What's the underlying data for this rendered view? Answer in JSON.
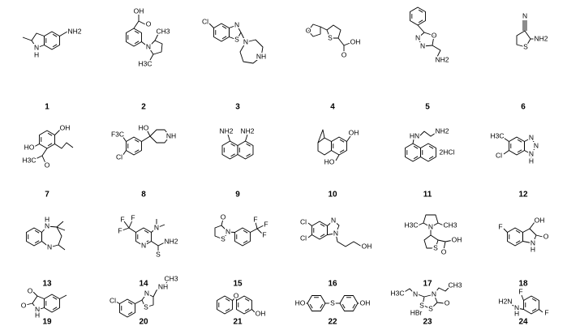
{
  "compounds": [
    {
      "number": 1,
      "labels": [
        "NH2",
        "N",
        "H"
      ]
    },
    {
      "number": 2,
      "labels": [
        "OH",
        "O",
        "N",
        "CH3",
        "H3C"
      ]
    },
    {
      "number": 3,
      "labels": [
        "Cl",
        "N",
        "S",
        "N",
        "NH"
      ]
    },
    {
      "number": 4,
      "labels": [
        "O",
        "S",
        "OH",
        "O"
      ]
    },
    {
      "number": 5,
      "labels": [
        "N",
        "O",
        "N",
        "NH2"
      ]
    },
    {
      "number": 6,
      "labels": [
        "N",
        "S",
        "NH2"
      ]
    },
    {
      "number": 7,
      "labels": [
        "OH",
        "HO",
        "H3C",
        "O"
      ]
    },
    {
      "number": 8,
      "labels": [
        "F3C",
        "HO",
        "NH",
        "Cl"
      ]
    },
    {
      "number": 9,
      "labels": [
        "NH2",
        "NH2"
      ]
    },
    {
      "number": 10,
      "labels": [
        "OH",
        "HO"
      ]
    },
    {
      "number": 11,
      "labels": [
        "HN",
        "NH2",
        "2HCl"
      ]
    },
    {
      "number": 12,
      "labels": [
        "H3C",
        "Cl",
        "N",
        "N",
        "N",
        "H"
      ]
    },
    {
      "number": 13,
      "labels": [
        "H",
        "N",
        "N"
      ]
    },
    {
      "number": 14,
      "labels": [
        "F",
        "F",
        "F",
        "N",
        "N",
        "S",
        "NH2"
      ]
    },
    {
      "number": 15,
      "labels": [
        "O",
        "N",
        "S",
        "F",
        "F",
        "F"
      ]
    },
    {
      "number": 16,
      "labels": [
        "Cl",
        "Cl",
        "N",
        "N",
        "OH"
      ]
    },
    {
      "number": 17,
      "labels": [
        "H3C",
        "CH3",
        "N",
        "S",
        "O",
        "OH"
      ]
    },
    {
      "number": 18,
      "labels": [
        "F",
        "OH",
        "N",
        "H",
        "O"
      ]
    },
    {
      "number": 19,
      "labels": [
        "O",
        "O",
        "N",
        "H"
      ]
    },
    {
      "number": 20,
      "labels": [
        "CH3",
        "NH",
        "Cl",
        "N",
        "S"
      ]
    },
    {
      "number": 21,
      "labels": [
        "O",
        "OH"
      ]
    },
    {
      "number": 22,
      "labels": [
        "HO",
        "S",
        "OH"
      ]
    },
    {
      "number": 23,
      "labels": [
        "H3C",
        "N",
        "S",
        "S",
        "N",
        "O",
        "CH3",
        "HBr"
      ]
    },
    {
      "number": 24,
      "labels": [
        "F",
        "H2N",
        "N",
        "H",
        "F"
      ]
    }
  ]
}
